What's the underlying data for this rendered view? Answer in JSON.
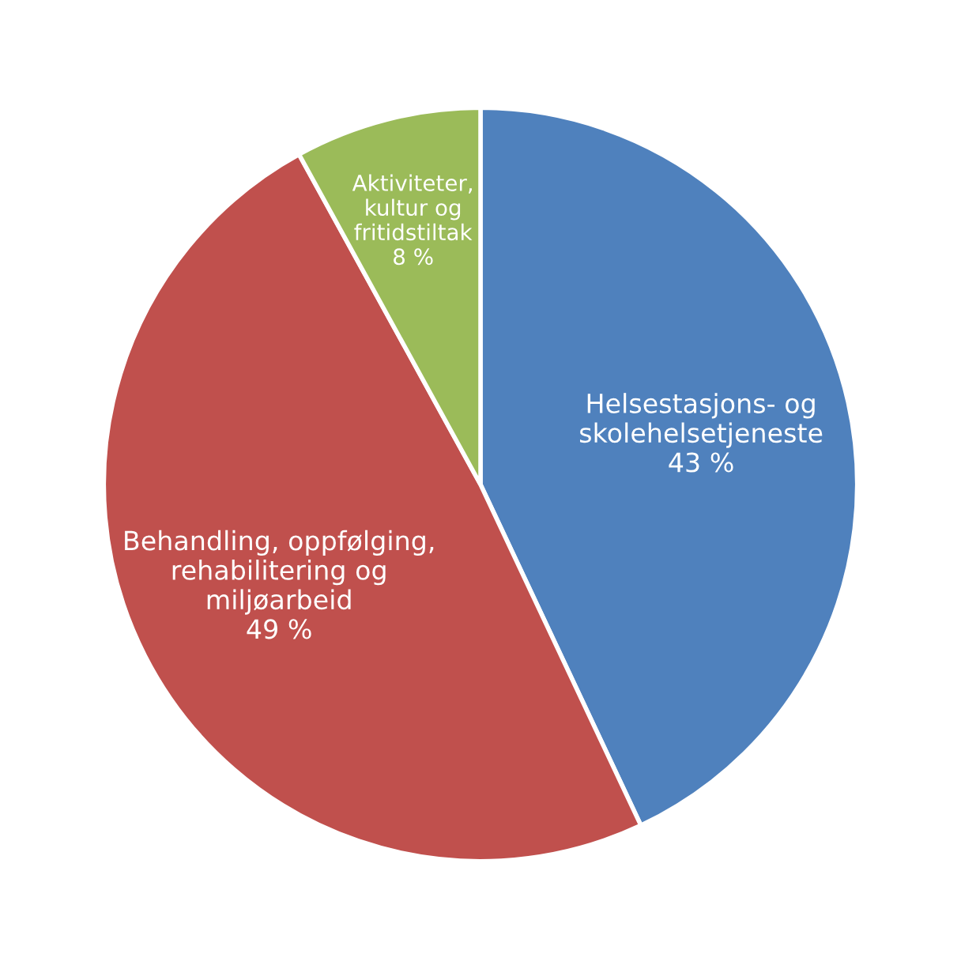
{
  "chart_data": {
    "type": "pie",
    "categories": [
      "Helsestasjons- og\nskolehelsetjeneste",
      "Behandling, oppfølging,\nrehabilitering og\nmiljøarbeid",
      "Aktiviteter,\nkultur og\nfritidstiltak"
    ],
    "values": [
      43,
      49,
      8
    ],
    "value_labels": [
      "43 %",
      "49 %",
      "8 %"
    ],
    "colors": [
      "#4f81bd",
      "#c0504d",
      "#9bbb59"
    ]
  }
}
